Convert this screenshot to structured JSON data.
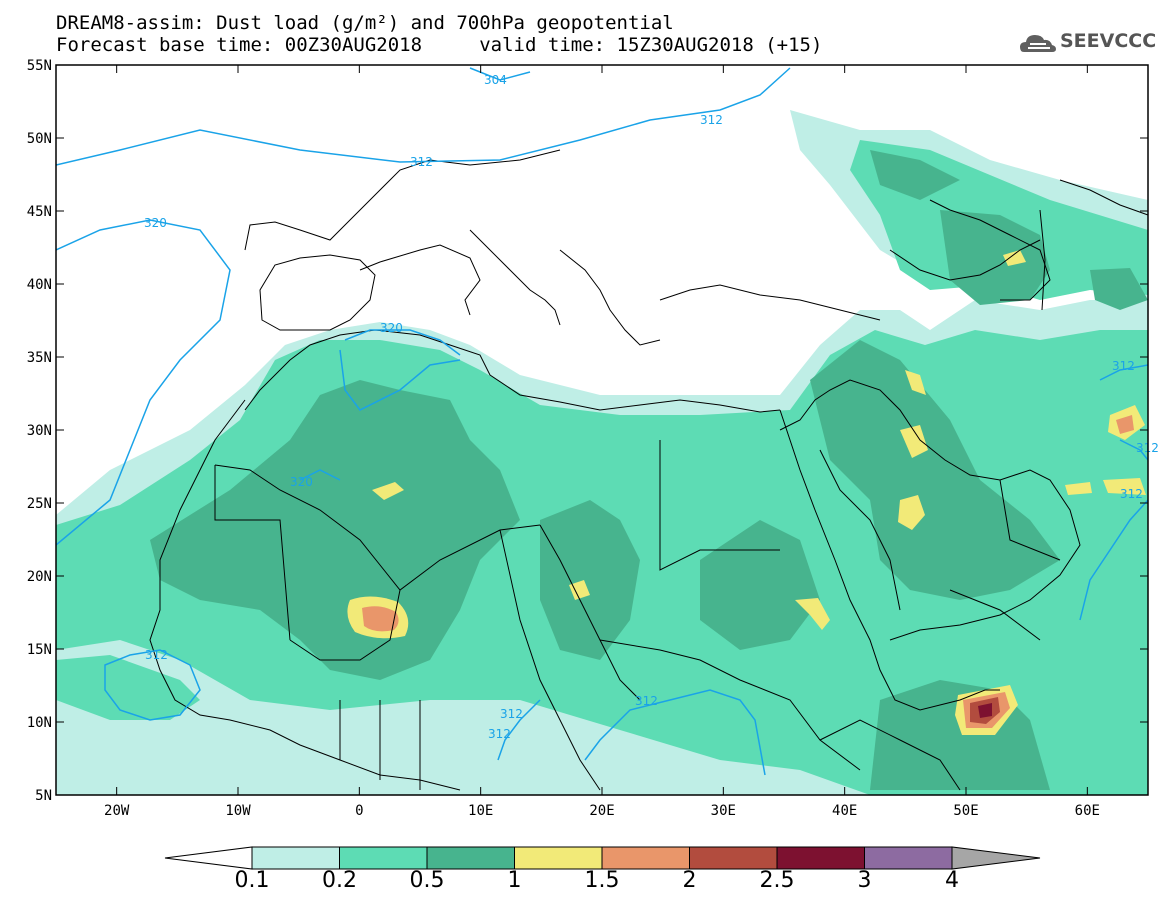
{
  "header": {
    "title_line1": "DREAM8-assim: Dust load (g/m²) and 700hPa geopotential",
    "title_line2": "Forecast base time: 00Z30AUG2018     valid time: 15Z30AUG2018 (+15)",
    "logo_text": "SEEVCCC",
    "logo_icon": "cloud-icon"
  },
  "map": {
    "lat_labels": [
      "55N",
      "50N",
      "45N",
      "40N",
      "35N",
      "30N",
      "25N",
      "20N",
      "15N",
      "10N",
      "5N"
    ],
    "lon_labels": [
      "20W",
      "10W",
      "0",
      "10E",
      "20E",
      "30E",
      "40E",
      "50E",
      "60E"
    ],
    "contour_labels": [
      "304",
      "312",
      "312",
      "320",
      "320",
      "320",
      "312",
      "312",
      "312",
      "312",
      "312",
      "312",
      "312"
    ]
  },
  "colorbar": {
    "labels": [
      "0.1",
      "0.2",
      "0.5",
      "1",
      "1.5",
      "2",
      "2.5",
      "3",
      "4"
    ],
    "colors": [
      "#bfeee6",
      "#5ddcb4",
      "#47b48e",
      "#f2ea78",
      "#e9966a",
      "#b24c3e",
      "#7d1130",
      "#8d6ba1"
    ],
    "under_color": "#ffffff",
    "over_color": "#a6a6a6"
  }
}
